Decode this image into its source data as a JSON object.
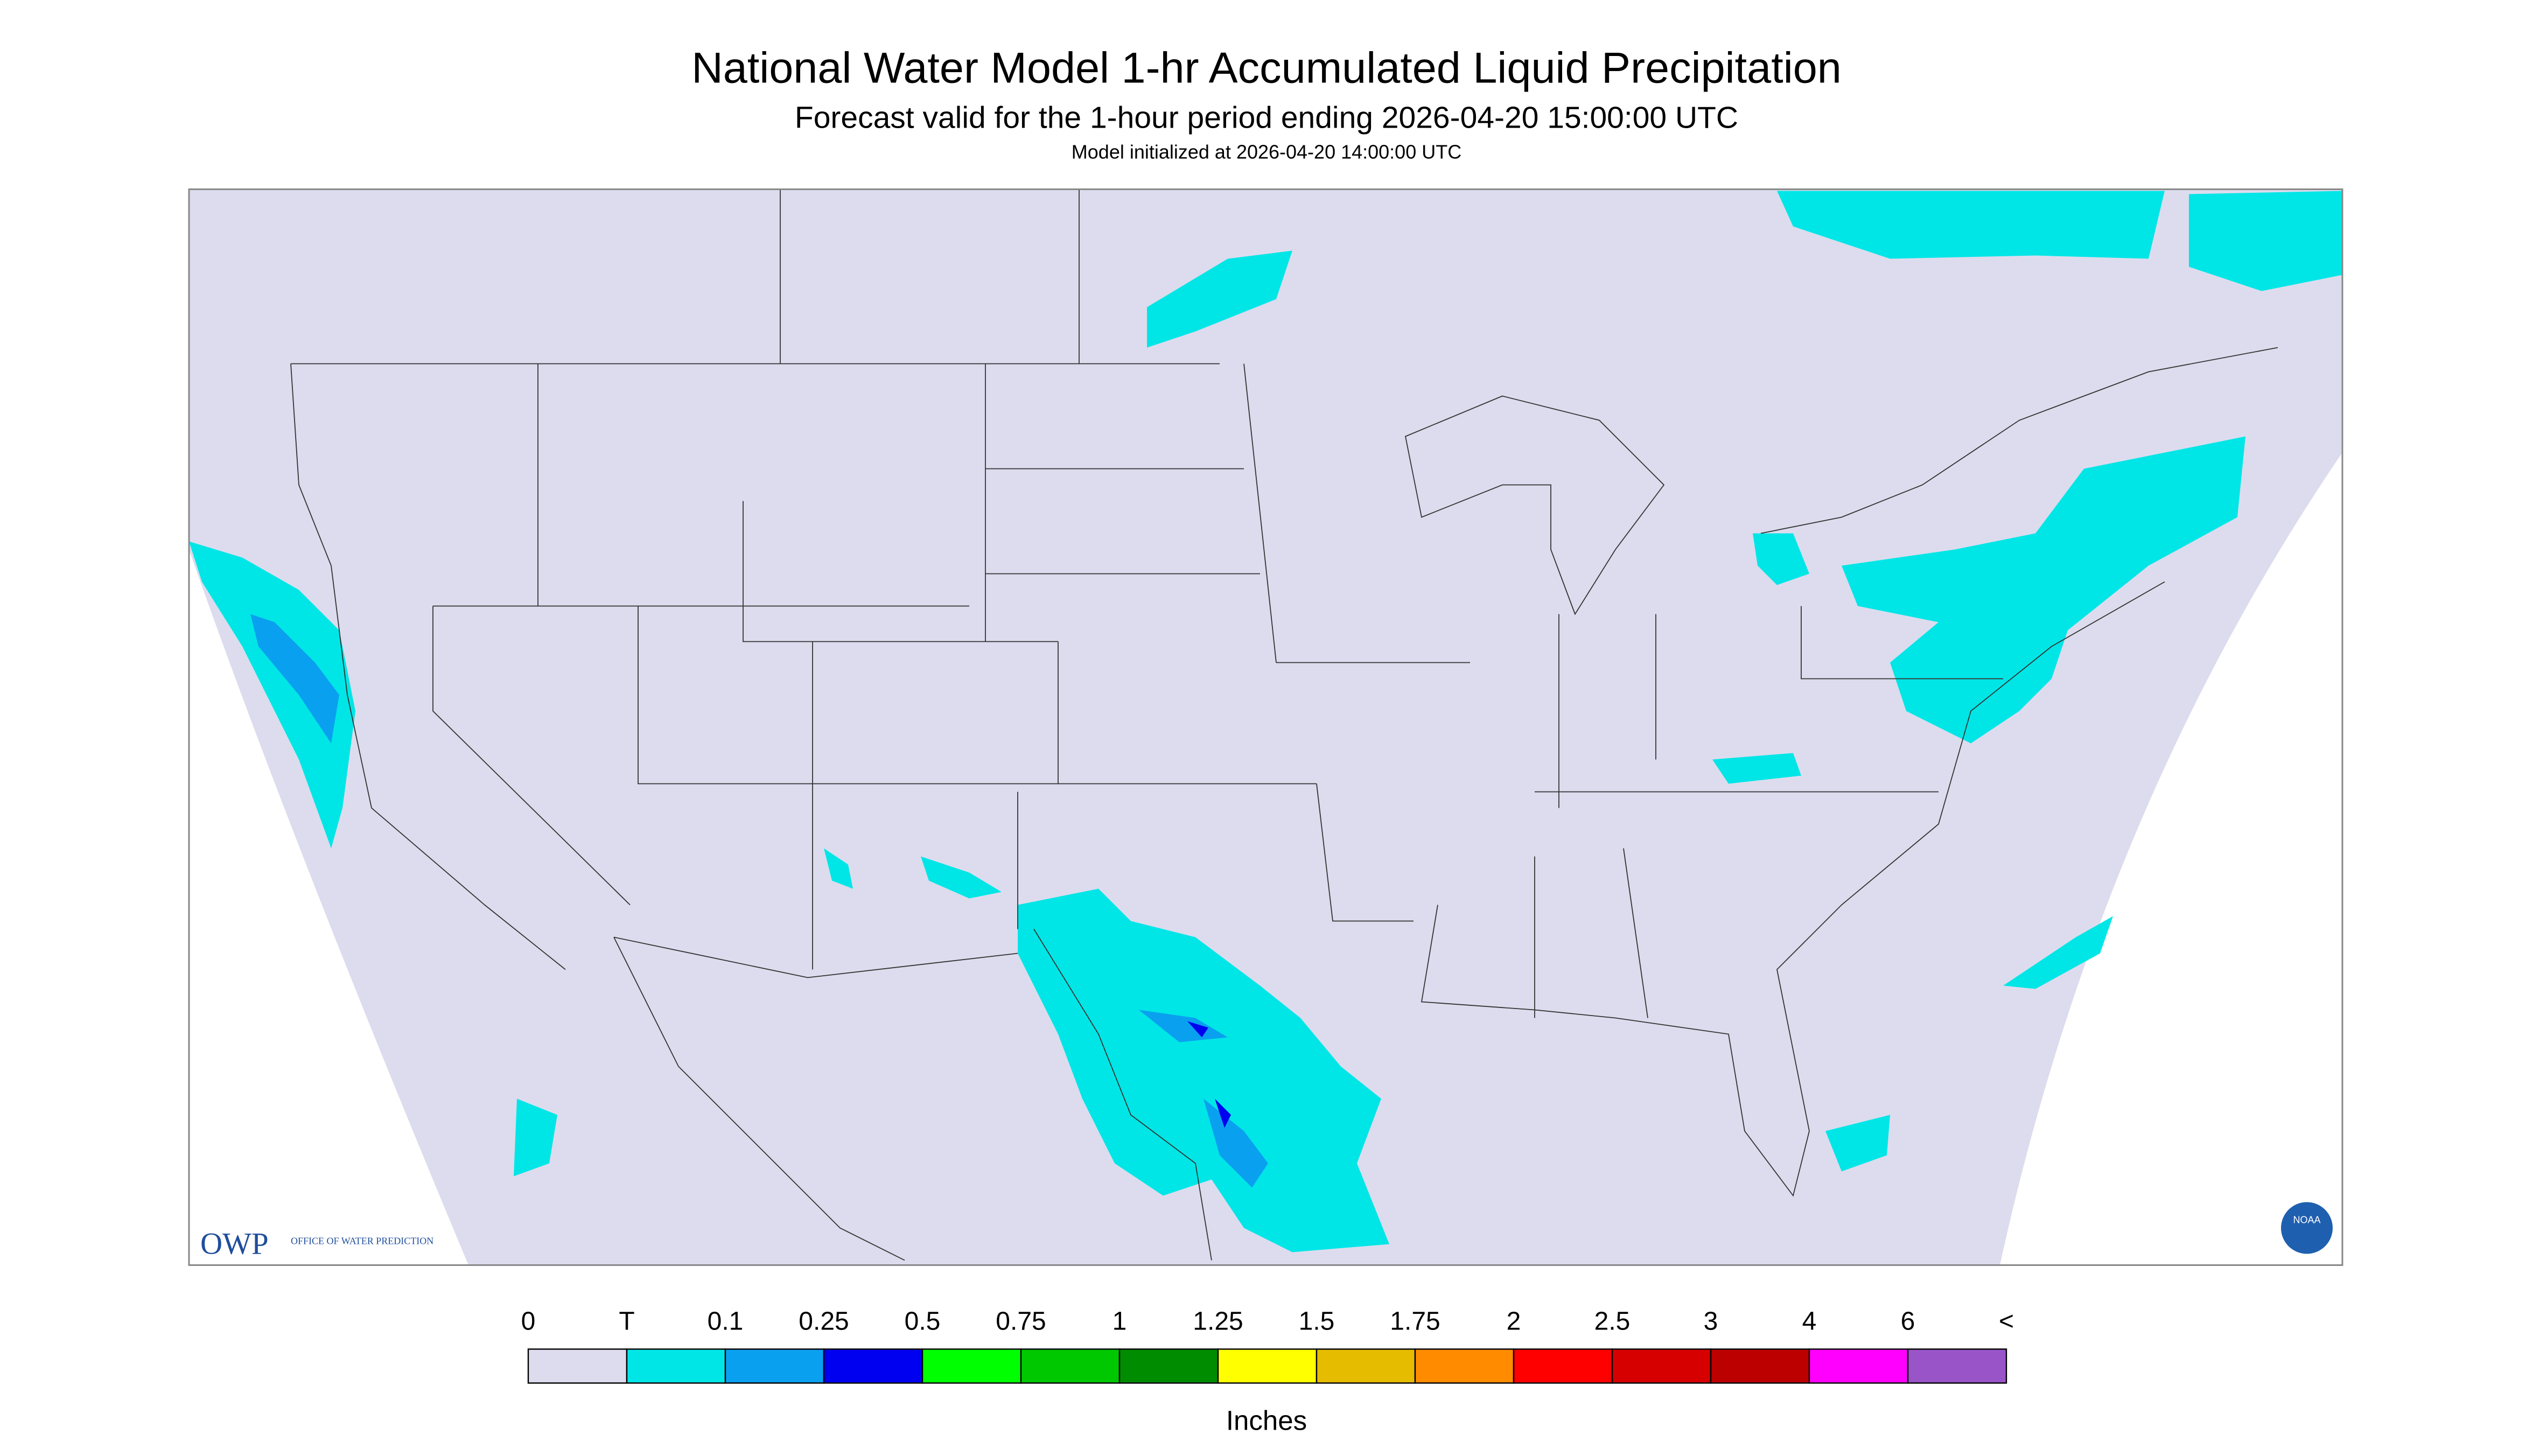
{
  "header": {
    "title": "National Water Model 1-hr Accumulated Liquid Precipitation",
    "subtitle": "Forecast valid for the 1-hour period ending 2026-04-20 15:00:00 UTC",
    "init": "Model initialized at 2026-04-20 14:00:00 UTC"
  },
  "legend": {
    "labels": [
      "0",
      "T",
      "0.1",
      "0.25",
      "0.5",
      "0.75",
      "1",
      "1.25",
      "1.5",
      "1.75",
      "2",
      "2.5",
      "3",
      "4",
      "6",
      "<"
    ],
    "colors": [
      "#dcdcee",
      "#00e6e6",
      "#0aa0f0",
      "#0000f0",
      "#00ff00",
      "#00c800",
      "#008c00",
      "#ffff00",
      "#e6bc00",
      "#ff8c00",
      "#ff0000",
      "#d70000",
      "#bc0000",
      "#ff00ff",
      "#9955c8"
    ],
    "unit": "Inches"
  },
  "logos": {
    "owp": "OWP",
    "owp_text": "OFFICE OF WATER PREDICTION",
    "noaa": "NOAA"
  }
}
